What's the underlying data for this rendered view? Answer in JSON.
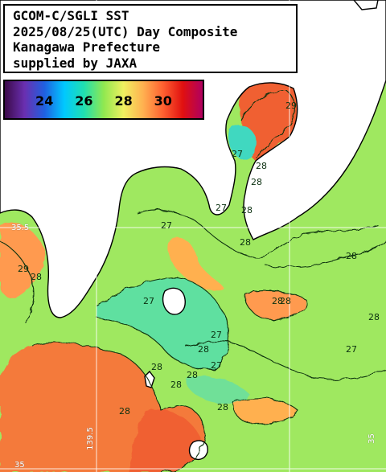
{
  "title": {
    "lines": [
      "GCOM-C/SGLI SST",
      "2025/08/25(UTC) Day Composite",
      "Kanagawa Prefecture",
      "supplied by JAXA"
    ]
  },
  "colorbar": {
    "ticks": [
      "24",
      "26",
      "28",
      "30"
    ],
    "tick_values": [
      24,
      26,
      28,
      30
    ],
    "range": [
      22,
      32
    ],
    "stops": [
      "#3b0a4a",
      "#6a2fb0",
      "#2060e0",
      "#00c8ff",
      "#20e0b0",
      "#90e850",
      "#f0f060",
      "#ffb050",
      "#ff6030",
      "#e01010",
      "#b00060"
    ]
  },
  "contour_labels": [
    "29",
    "28",
    "27",
    "27",
    "28",
    "28",
    "27",
    "28",
    "28",
    "27",
    "28",
    "28",
    "27",
    "27",
    "28",
    "28",
    "28",
    "28",
    "29",
    "28",
    "27",
    "28",
    "28",
    "28"
  ],
  "grid_labels": [
    "35.5",
    "35",
    "139.5",
    "35"
  ],
  "colors": {
    "land": "#ffffff",
    "sea_28": "#9fe860",
    "sea_27": "#5fe0a0",
    "sea_29": "#ff9850",
    "sea_30": "#f06030",
    "coast": "#000000",
    "contour": "#0b3010"
  }
}
